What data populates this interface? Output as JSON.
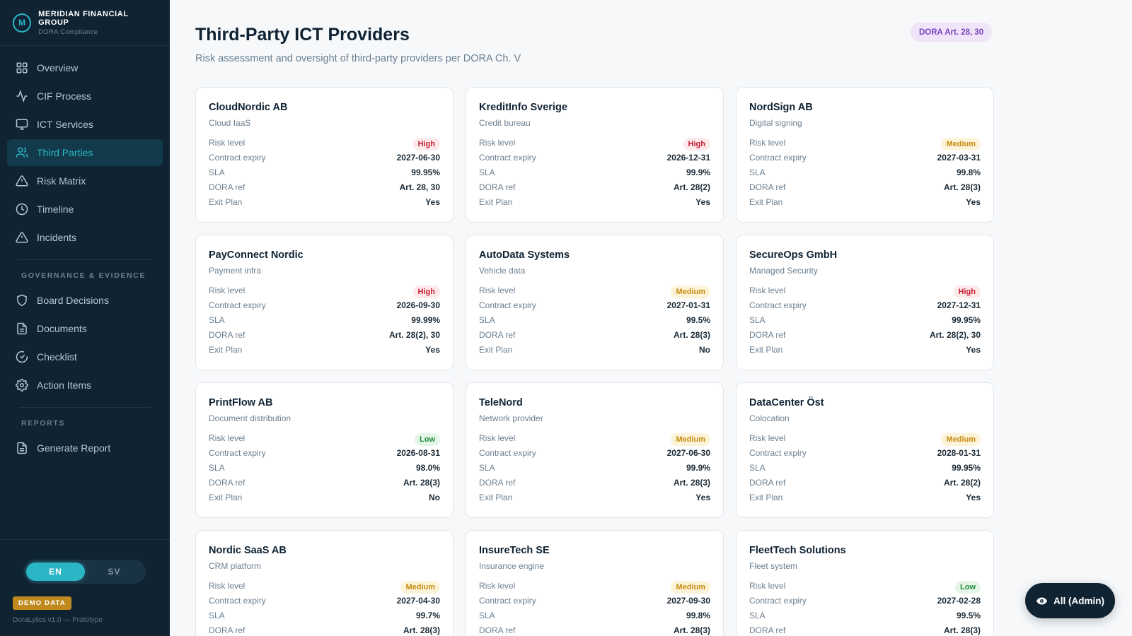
{
  "brand": {
    "logo_letter": "M",
    "name": "MERIDIAN FINANCIAL GROUP",
    "subtitle": "DORA Compliance"
  },
  "sidebar": {
    "items": [
      {
        "label": "Overview",
        "icon": "grid-icon"
      },
      {
        "label": "CIF Process",
        "icon": "activity-icon"
      },
      {
        "label": "ICT Services",
        "icon": "monitor-icon"
      },
      {
        "label": "Third Parties",
        "icon": "users-icon",
        "active": true
      },
      {
        "label": "Risk Matrix",
        "icon": "warning-triangle-icon"
      },
      {
        "label": "Timeline",
        "icon": "clock-icon"
      },
      {
        "label": "Incidents",
        "icon": "warning-triangle-icon"
      }
    ],
    "governance_section": "GOVERNANCE & EVIDENCE",
    "governance_items": [
      {
        "label": "Board Decisions",
        "icon": "shield-icon"
      },
      {
        "label": "Documents",
        "icon": "document-icon"
      },
      {
        "label": "Checklist",
        "icon": "check-circle-icon"
      },
      {
        "label": "Action Items",
        "icon": "gear-icon"
      }
    ],
    "reports_section": "REPORTS",
    "reports_items": [
      {
        "label": "Generate Report",
        "icon": "document-icon"
      }
    ]
  },
  "footer": {
    "lang_en": "EN",
    "lang_sv": "SV",
    "active_lang": "EN",
    "demo_badge": "DEMO DATA",
    "version": "DoraLytics v1.0 — Prototype"
  },
  "header": {
    "title": "Third-Party ICT Providers",
    "subtitle": "Risk assessment and oversight of third-party providers per DORA Ch. V",
    "dora_pill": "DORA Art. 28, 30"
  },
  "labels": {
    "risk_level": "Risk level",
    "contract_expiry": "Contract expiry",
    "sla": "SLA",
    "dora_ref": "DORA ref",
    "exit_plan": "Exit Plan"
  },
  "providers": [
    {
      "name": "CloudNordic AB",
      "type": "Cloud IaaS",
      "risk": "High",
      "expiry": "2027-06-30",
      "sla": "99.95%",
      "dora": "Art. 28, 30",
      "exit": "Yes"
    },
    {
      "name": "KreditInfo Sverige",
      "type": "Credit bureau",
      "risk": "High",
      "expiry": "2026-12-31",
      "sla": "99.9%",
      "dora": "Art. 28(2)",
      "exit": "Yes"
    },
    {
      "name": "NordSign AB",
      "type": "Digital signing",
      "risk": "Medium",
      "expiry": "2027-03-31",
      "sla": "99.8%",
      "dora": "Art. 28(3)",
      "exit": "Yes"
    },
    {
      "name": "PayConnect Nordic",
      "type": "Payment infra",
      "risk": "High",
      "expiry": "2026-09-30",
      "sla": "99.99%",
      "dora": "Art. 28(2), 30",
      "exit": "Yes"
    },
    {
      "name": "AutoData Systems",
      "type": "Vehicle data",
      "risk": "Medium",
      "expiry": "2027-01-31",
      "sla": "99.5%",
      "dora": "Art. 28(3)",
      "exit": "No"
    },
    {
      "name": "SecureOps GmbH",
      "type": "Managed Security",
      "risk": "High",
      "expiry": "2027-12-31",
      "sla": "99.95%",
      "dora": "Art. 28(2), 30",
      "exit": "Yes"
    },
    {
      "name": "PrintFlow AB",
      "type": "Document distribution",
      "risk": "Low",
      "expiry": "2026-08-31",
      "sla": "98.0%",
      "dora": "Art. 28(3)",
      "exit": "No"
    },
    {
      "name": "TeleNord",
      "type": "Network provider",
      "risk": "Medium",
      "expiry": "2027-06-30",
      "sla": "99.9%",
      "dora": "Art. 28(3)",
      "exit": "Yes"
    },
    {
      "name": "DataCenter Öst",
      "type": "Colocation",
      "risk": "Medium",
      "expiry": "2028-01-31",
      "sla": "99.95%",
      "dora": "Art. 28(2)",
      "exit": "Yes"
    },
    {
      "name": "Nordic SaaS AB",
      "type": "CRM platform",
      "risk": "Medium",
      "expiry": "2027-04-30",
      "sla": "99.7%",
      "dora": "Art. 28(3)",
      "exit": ""
    },
    {
      "name": "InsureTech SE",
      "type": "Insurance engine",
      "risk": "Medium",
      "expiry": "2027-09-30",
      "sla": "99.8%",
      "dora": "Art. 28(3)",
      "exit": ""
    },
    {
      "name": "FleetTech Solutions",
      "type": "Fleet system",
      "risk": "Low",
      "expiry": "2027-02-28",
      "sla": "99.5%",
      "dora": "Art. 28(3)",
      "exit": ""
    }
  ],
  "admin_button": {
    "label": "All (Admin)",
    "icon": "eye-icon"
  },
  "colors": {
    "sidebar_bg": "#0f2333",
    "accent": "#2bb6c6",
    "high": "#c41e33",
    "medium": "#c68b12",
    "low": "#1f8a3a",
    "dora_pill": "#7a42c2",
    "demo_badge": "#c08a1e"
  }
}
